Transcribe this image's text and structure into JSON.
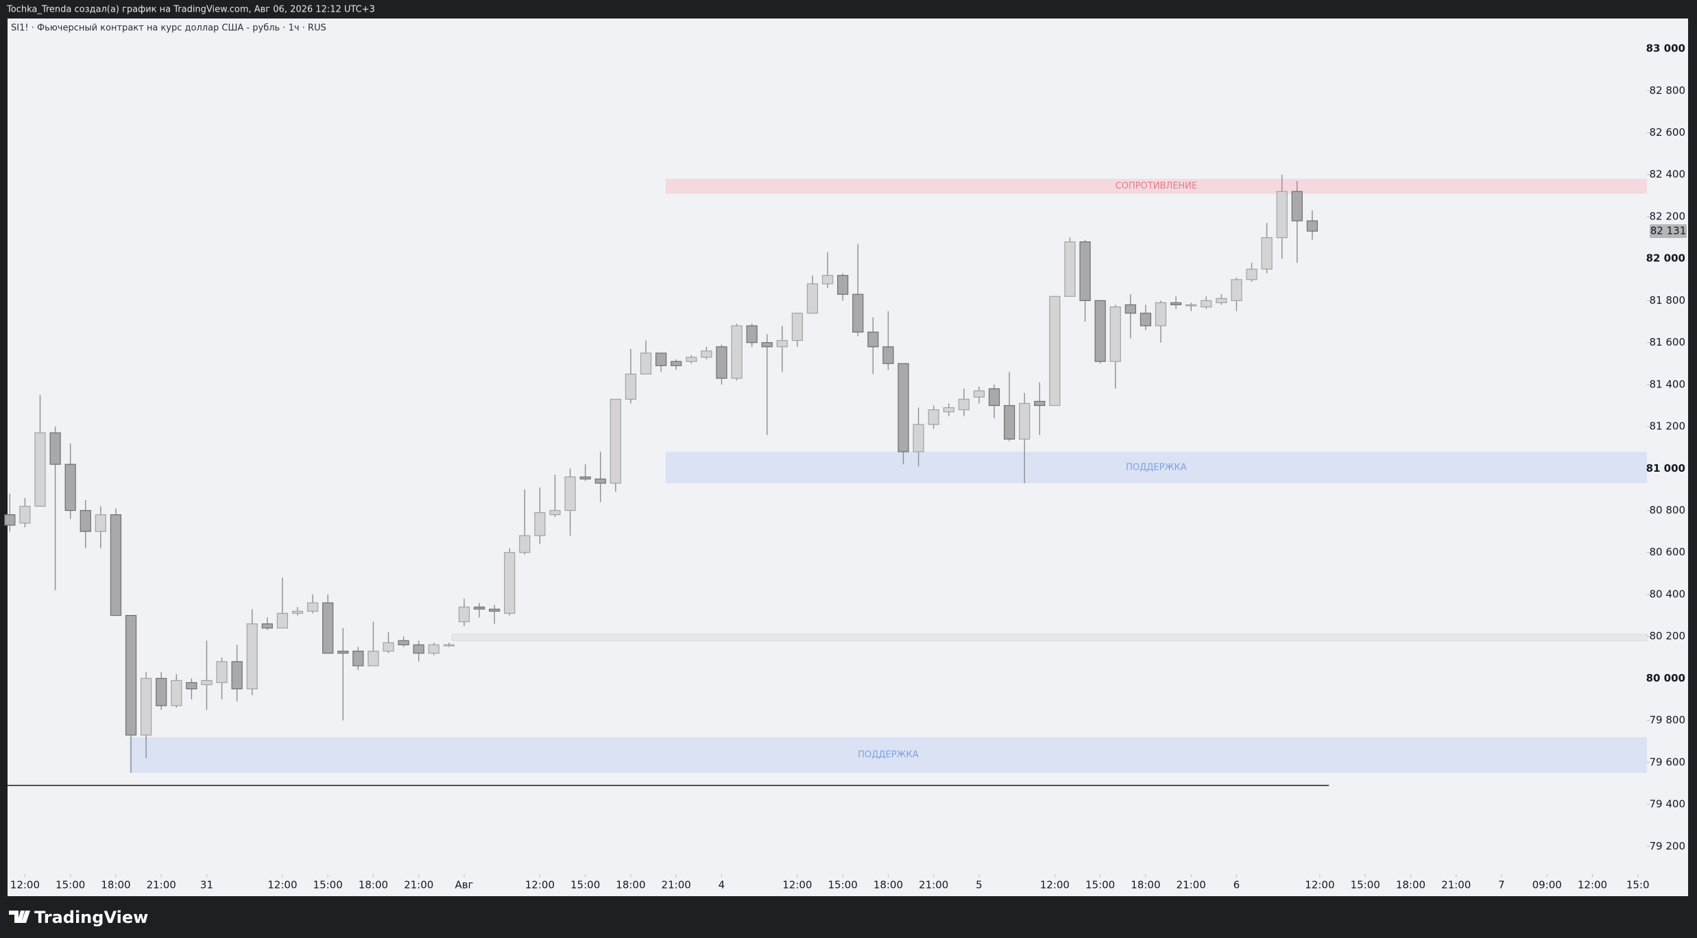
{
  "header": "Tochka_Trenda создал(а) график на TradingView.com, Авг 06, 2026 12:12 UTC+3",
  "footer_brand": "TradingView",
  "chart_data": {
    "type": "candlestick",
    "title": "SI1! · Фьючерсный контракт на курс доллар США - рубль · 1ч · RUS",
    "up_color": "#d4d4d6",
    "up_border": "#a2a2a5",
    "down_color": "#a9a9ac",
    "down_border": "#6e6e72",
    "wick_color": "#8c8c90",
    "open": [
      80780,
      80740,
      80820,
      81170,
      81020,
      80800,
      80700,
      80780,
      80300,
      79730,
      80000,
      79870,
      79980,
      79970,
      79980,
      80080,
      79950,
      80260,
      80240,
      80310,
      80320,
      80360,
      80130,
      80130,
      80060,
      80130,
      80180,
      80160,
      80120,
      80160,
      80270,
      80340,
      80330,
      80310,
      80600,
      80680,
      80780,
      80800,
      80960,
      80950,
      80930,
      81330,
      81450,
      81550,
      81510,
      81510,
      81530,
      81580,
      81430,
      81680,
      81600,
      81580,
      81610,
      81740,
      81880,
      81920,
      81830,
      81650,
      81580,
      81500,
      81080,
      81210,
      81270,
      81280,
      81340,
      81380,
      81300,
      81140,
      81320,
      81300,
      81820,
      82080,
      81800,
      81510,
      81780,
      81740,
      81680,
      81790,
      81780,
      81770,
      81790,
      81800,
      81900,
      81950,
      82100,
      82320,
      82180
    ],
    "high": [
      80880,
      80860,
      81350,
      81200,
      81120,
      80850,
      80820,
      80810,
      80300,
      80030,
      80030,
      80020,
      80000,
      80180,
      80100,
      80160,
      80330,
      80290,
      80480,
      80340,
      80400,
      80400,
      80240,
      80150,
      80270,
      80220,
      80200,
      80180,
      80170,
      80170,
      80380,
      80360,
      80350,
      80620,
      80900,
      80910,
      80970,
      81000,
      81020,
      81080,
      81330,
      81570,
      81610,
      81550,
      81520,
      81540,
      81580,
      81590,
      81690,
      81690,
      81640,
      81680,
      81740,
      81920,
      82030,
      81930,
      82070,
      81720,
      81750,
      81500,
      81290,
      81300,
      81310,
      81380,
      81390,
      81400,
      81460,
      81360,
      81410,
      81820,
      82100,
      82090,
      81800,
      81780,
      81830,
      81780,
      81800,
      81820,
      81790,
      81820,
      81830,
      81910,
      81980,
      82170,
      82400,
      82370,
      82230
    ],
    "low": [
      80700,
      80720,
      80820,
      80420,
      80760,
      80620,
      80620,
      80300,
      79550,
      79620,
      79850,
      79860,
      79900,
      79850,
      79900,
      79890,
      79920,
      80230,
      80240,
      80300,
      80310,
      80120,
      79800,
      80040,
      80060,
      80120,
      80150,
      80080,
      80110,
      80150,
      80250,
      80290,
      80260,
      80300,
      80590,
      80640,
      80770,
      80680,
      80940,
      80840,
      80890,
      81310,
      81450,
      81460,
      81470,
      81500,
      81520,
      81400,
      81420,
      81580,
      81160,
      81460,
      81580,
      81740,
      81860,
      81800,
      81630,
      81450,
      81470,
      81020,
      81010,
      81190,
      81250,
      81250,
      81310,
      81240,
      81130,
      80930,
      81160,
      81300,
      81820,
      81700,
      81500,
      81380,
      81620,
      81660,
      81600,
      81760,
      81750,
      81760,
      81780,
      81750,
      81890,
      81930,
      82000,
      81980,
      82090
    ],
    "close": [
      80730,
      80820,
      81170,
      81020,
      80800,
      80700,
      80780,
      80300,
      79730,
      80000,
      79870,
      79990,
      79950,
      79990,
      80080,
      79950,
      80260,
      80240,
      80310,
      80320,
      80360,
      80120,
      80120,
      80060,
      80130,
      80170,
      80160,
      80120,
      80160,
      80160,
      80340,
      80330,
      80320,
      80600,
      80680,
      80790,
      80800,
      80960,
      80950,
      80930,
      81330,
      81450,
      81550,
      81490,
      81490,
      81530,
      81560,
      81430,
      81680,
      81600,
      81580,
      81610,
      81740,
      81880,
      81920,
      81830,
      81650,
      81580,
      81500,
      81080,
      81210,
      81280,
      81290,
      81330,
      81370,
      81300,
      81140,
      81310,
      81300,
      81820,
      82080,
      81800,
      81510,
      81770,
      81740,
      81680,
      81790,
      81780,
      81780,
      81800,
      81810,
      81900,
      81950,
      82100,
      82320,
      82180,
      82131
    ],
    "last_price": {
      "value": 82131,
      "label": "82 131"
    },
    "xlim": [
      -0.15,
      108.1
    ],
    "xticks": [
      {
        "value": 1,
        "label": "12:00"
      },
      {
        "value": 4,
        "label": "15:00"
      },
      {
        "value": 7,
        "label": "18:00"
      },
      {
        "value": 10,
        "label": "21:00"
      },
      {
        "value": 13,
        "label": "31"
      },
      {
        "value": 18,
        "label": "12:00"
      },
      {
        "value": 21,
        "label": "15:00"
      },
      {
        "value": 24,
        "label": "18:00"
      },
      {
        "value": 27,
        "label": "21:00"
      },
      {
        "value": 30,
        "label": "Авг"
      },
      {
        "value": 35,
        "label": "12:00"
      },
      {
        "value": 38,
        "label": "15:00"
      },
      {
        "value": 41,
        "label": "18:00"
      },
      {
        "value": 44,
        "label": "21:00"
      },
      {
        "value": 47,
        "label": "4"
      },
      {
        "value": 52,
        "label": "12:00"
      },
      {
        "value": 55,
        "label": "15:00"
      },
      {
        "value": 58,
        "label": "18:00"
      },
      {
        "value": 61,
        "label": "21:00"
      },
      {
        "value": 64,
        "label": "5"
      },
      {
        "value": 69,
        "label": "12:00"
      },
      {
        "value": 72,
        "label": "15:00"
      },
      {
        "value": 75,
        "label": "18:00"
      },
      {
        "value": 78,
        "label": "21:00"
      },
      {
        "value": 81,
        "label": "6"
      },
      {
        "value": 86.5,
        "label": "12:00"
      },
      {
        "value": 89.5,
        "label": "15:00"
      },
      {
        "value": 92.5,
        "label": "18:00"
      },
      {
        "value": 95.5,
        "label": "21:00"
      },
      {
        "value": 98.5,
        "label": "7"
      },
      {
        "value": 101.5,
        "label": "09:00"
      },
      {
        "value": 104.5,
        "label": "12:00"
      },
      {
        "value": 107.5,
        "label": "15:0"
      }
    ],
    "ylim": [
      79067,
      83144
    ],
    "yticks": [
      {
        "value": 79200,
        "label": "79 200"
      },
      {
        "value": 79400,
        "label": "79 400"
      },
      {
        "value": 79600,
        "label": "79 600"
      },
      {
        "value": 79800,
        "label": "79 800"
      },
      {
        "value": 80000,
        "label": "80 000"
      },
      {
        "value": 80200,
        "label": "80 200"
      },
      {
        "value": 80400,
        "label": "80 400"
      },
      {
        "value": 80600,
        "label": "80 600"
      },
      {
        "value": 80800,
        "label": "80 800"
      },
      {
        "value": 81000,
        "label": "81 000"
      },
      {
        "value": 81200,
        "label": "81 200"
      },
      {
        "value": 81400,
        "label": "81 400"
      },
      {
        "value": 81600,
        "label": "81 600"
      },
      {
        "value": 81800,
        "label": "81 800"
      },
      {
        "value": 82000,
        "label": "82 000"
      },
      {
        "value": 82200,
        "label": "82 200"
      },
      {
        "value": 82400,
        "label": "82 400"
      },
      {
        "value": 82600,
        "label": "82 600"
      },
      {
        "value": 82800,
        "label": "82 800"
      },
      {
        "value": 83000,
        "label": "83 000"
      }
    ],
    "zones": [
      {
        "label": "СОПРОТИВЛЕНИЕ",
        "top": 82380,
        "bottom": 82310,
        "start": 43.3,
        "color": "#f4d9df",
        "text_color": "#e57b8a"
      },
      {
        "label": "ПОДДЕРЖКА",
        "top": 81080,
        "bottom": 80930,
        "start": 43.3,
        "color": "#dbe2f3",
        "text_color": "#7aa2e3"
      },
      {
        "top": 80210,
        "bottom": 80180,
        "start": 29.2,
        "color": "#e6e8ec"
      },
      {
        "label": "ПОДДЕРЖКА",
        "top": 79720,
        "bottom": 79550,
        "start": 7.9,
        "color": "#dbe2f3",
        "text_color": "#7aa2e3"
      }
    ],
    "level_line": {
      "value": 79490,
      "end": 87.1,
      "color": "#131722"
    }
  }
}
